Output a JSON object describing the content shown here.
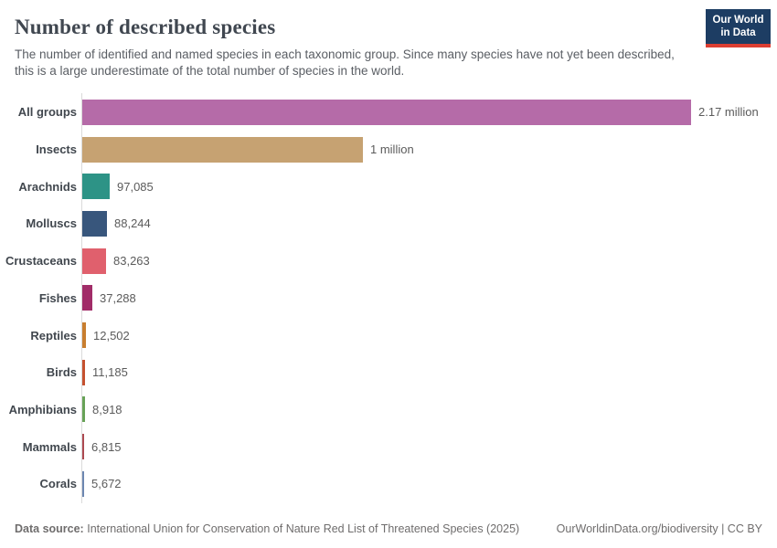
{
  "header": {
    "title": "Number of described species",
    "subtitle": "The number of identified and named species in each taxonomic group. Since many species have not yet been described, this is a large underestimate of the total number of species in the world.",
    "logo": {
      "line1": "Our World",
      "line2": "in Data",
      "bg_color": "#1d3d63",
      "accent_color": "#dc3e32"
    }
  },
  "chart_data": {
    "type": "bar",
    "orientation": "horizontal",
    "title": "Number of described species",
    "xlabel": "",
    "ylabel": "",
    "grid": false,
    "xlim": [
      0,
      2170000
    ],
    "categories": [
      "All groups",
      "Insects",
      "Arachnids",
      "Molluscs",
      "Crustaceans",
      "Fishes",
      "Reptiles",
      "Birds",
      "Amphibians",
      "Mammals",
      "Corals"
    ],
    "values": [
      2170000,
      1000000,
      97085,
      88244,
      83263,
      37288,
      12502,
      11185,
      8918,
      6815,
      5672
    ],
    "value_labels": [
      "2.17 million",
      "1 million",
      "97,085",
      "88,244",
      "83,263",
      "37,288",
      "12,502",
      "11,185",
      "8,918",
      "6,815",
      "5,672"
    ],
    "bar_colors": [
      "#b56ba8",
      "#c6a272",
      "#2d9386",
      "#38567c",
      "#e0606d",
      "#a12c68",
      "#c87e2f",
      "#c5512f",
      "#68a257",
      "#ad4a51",
      "#6d87b1"
    ],
    "axis_color": "#dadada"
  },
  "footer": {
    "source_label": "Data source:",
    "source_text": "International Union for Conservation of Nature Red List of Threatened Species (2025)",
    "rights": "OurWorldinData.org/biodiversity | CC BY"
  }
}
